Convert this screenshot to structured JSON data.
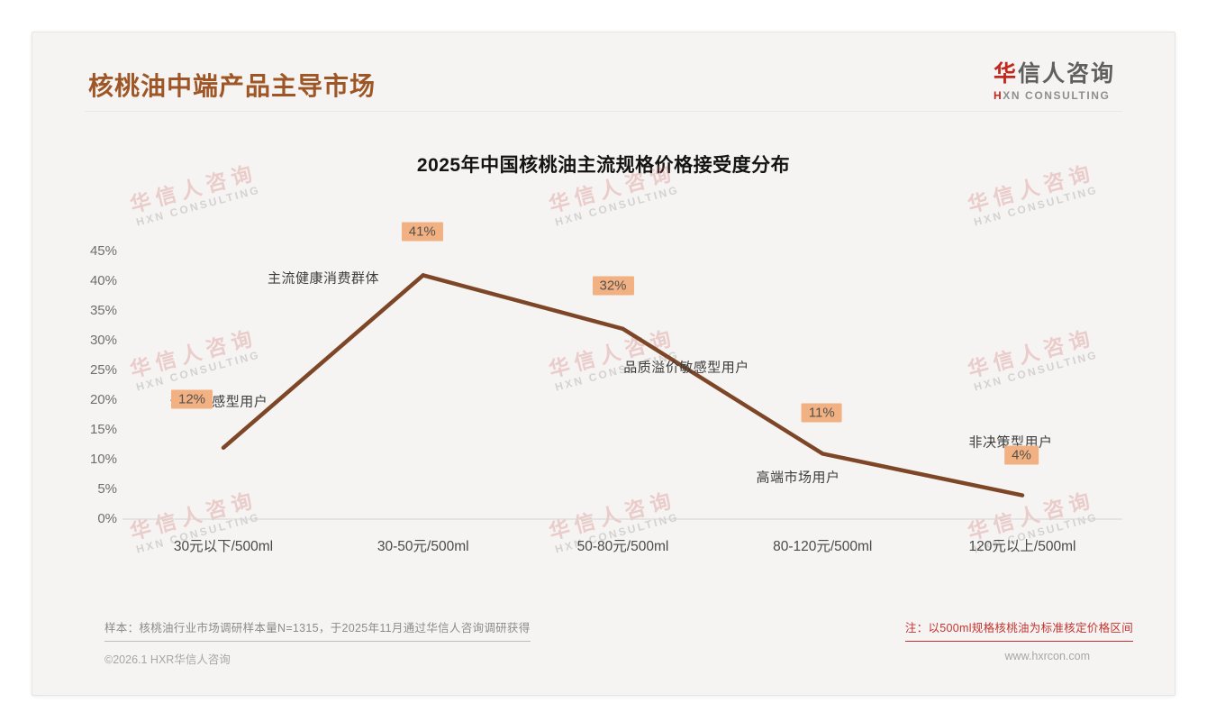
{
  "header": {
    "title": "核桃油中端产品主导市场",
    "logo": {
      "accent_char": "华",
      "rest_chars": "信人咨询",
      "subtitle": "HXN CONSULTING"
    }
  },
  "watermark": {
    "line1": "华信人咨询",
    "line2": "HXN CONSULTING"
  },
  "chart_data": {
    "type": "line",
    "title": "2025年中国核桃油主流规格价格接受度分布",
    "categories": [
      "30元以下/500ml",
      "30-50元/500ml",
      "50-80元/500ml",
      "80-120元/500ml",
      "120元以上/500ml"
    ],
    "values": [
      12,
      41,
      32,
      11,
      4
    ],
    "value_labels": [
      "12%",
      "41%",
      "32%",
      "11%",
      "4%"
    ],
    "annotations": [
      "价格敏感型用户",
      "主流健康消费群体",
      "品质溢价敏感型用户",
      "高端市场用户",
      "非决策型用户"
    ],
    "y_ticks": [
      "45%",
      "40%",
      "35%",
      "30%",
      "25%",
      "20%",
      "15%",
      "10%",
      "5%",
      "0%"
    ],
    "ylabel": "",
    "xlabel": "",
    "ylim": [
      0,
      45
    ],
    "grid": false,
    "legend": false,
    "line_color": "#7d4727",
    "value_label_bg": "#f1b183",
    "axis_color": "#d6d5d2"
  },
  "notes": {
    "sample": "样本：核桃油行业市场调研样本量N=1315，于2025年11月通过华信人咨询调研获得",
    "price": "注：以500ml规格核桃油为标准核定价格区间"
  },
  "footer": {
    "left": "©2026.1 HXR华信人咨询",
    "right": "www.hxrcon.com"
  }
}
